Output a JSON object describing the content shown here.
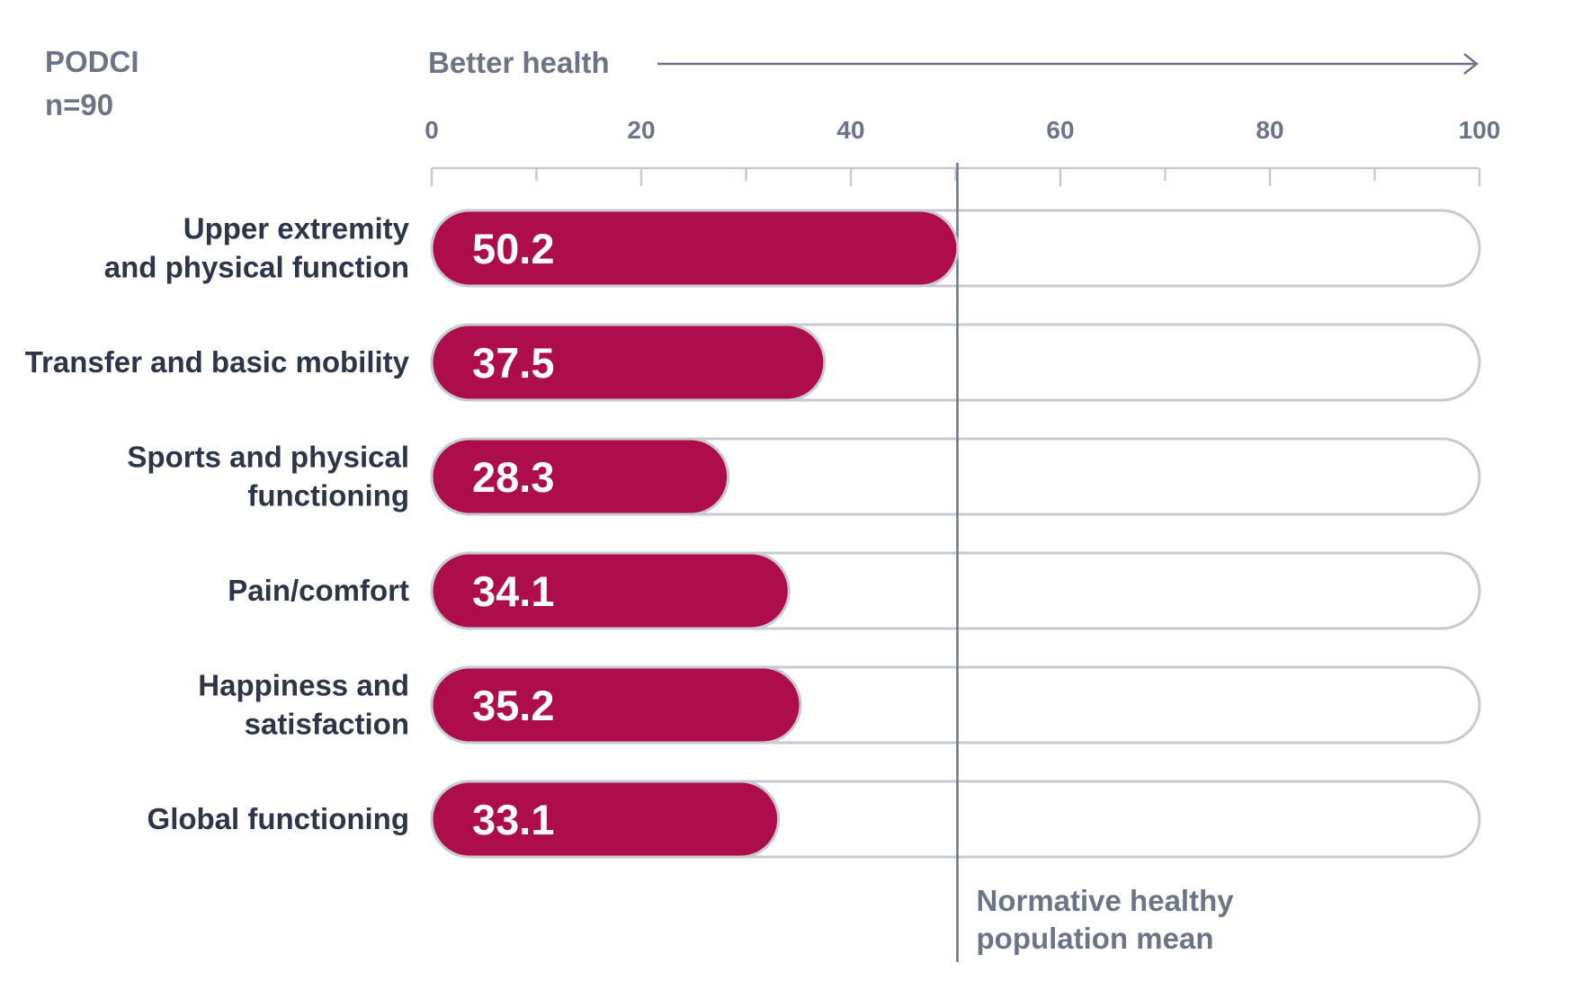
{
  "chart_data": {
    "type": "bar",
    "orientation": "horizontal",
    "title": "PODCI",
    "subtitle": "n=90",
    "axis_label": "Better health",
    "xlim": [
      0,
      100
    ],
    "ticks": [
      "0",
      "20",
      "40",
      "60",
      "80",
      "100"
    ],
    "categories": [
      [
        "Upper extremity",
        "and physical function"
      ],
      [
        "Transfer and basic mobility"
      ],
      [
        "Sports and physical",
        "functioning"
      ],
      [
        "Pain/comfort"
      ],
      [
        "Happiness and",
        "satisfaction"
      ],
      [
        "Global functioning"
      ]
    ],
    "values": [
      50.2,
      37.5,
      28.3,
      34.1,
      35.2,
      33.1
    ],
    "value_labels": [
      "50.2",
      "37.5",
      "28.3",
      "34.1",
      "35.2",
      "33.1"
    ],
    "reference_line": {
      "value": 50,
      "label": [
        "Normative healthy",
        "population mean"
      ]
    },
    "colors": {
      "bar": "#ad0d4a",
      "track_stroke": "#c7cad2",
      "axis": "#6c7588",
      "category_text": "#2d3548"
    },
    "grid": false,
    "legend": "none"
  }
}
